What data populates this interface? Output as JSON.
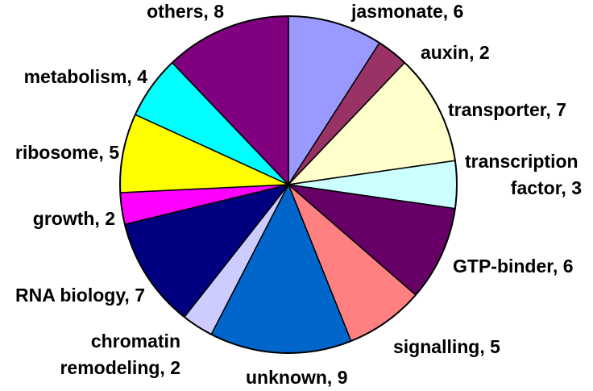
{
  "chart_data": {
    "type": "pie",
    "title": "",
    "start_angle_deg": 0,
    "direction": "clockwise",
    "slices": [
      {
        "label": "jasmonate, 6",
        "name": "jasmonate",
        "value": 6,
        "color": "#9999FF"
      },
      {
        "label": "auxin, 2",
        "name": "auxin",
        "value": 2,
        "color": "#993366"
      },
      {
        "label": "transporter, 7",
        "name": "transporter",
        "value": 7,
        "color": "#FFFFCC"
      },
      {
        "label": [
          "transcription",
          "factor, 3"
        ],
        "name": "transcription factor",
        "value": 3,
        "color": "#CCFFFF"
      },
      {
        "label": "GTP-binder, 6",
        "name": "GTP-binder",
        "value": 6,
        "color": "#660066"
      },
      {
        "label": "signalling, 5",
        "name": "signalling",
        "value": 5,
        "color": "#FF8080"
      },
      {
        "label": "unknown, 9",
        "name": "unknown",
        "value": 9,
        "color": "#0066CC"
      },
      {
        "label": [
          "chromatin",
          "remodeling, 2"
        ],
        "name": "chromatin remodeling",
        "value": 2,
        "color": "#CCCCFF"
      },
      {
        "label": "RNA biology, 7",
        "name": "RNA biology",
        "value": 7,
        "color": "#000080"
      },
      {
        "label": "growth, 2",
        "name": "growth",
        "value": 2,
        "color": "#FF00FF"
      },
      {
        "label": "ribosome, 5",
        "name": "ribosome",
        "value": 5,
        "color": "#FFFF00"
      },
      {
        "label": "metabolism, 4",
        "name": "metabolism",
        "value": 4,
        "color": "#00FFFF"
      },
      {
        "label": "others, 8",
        "name": "others",
        "value": 8,
        "color": "#800080"
      }
    ]
  }
}
